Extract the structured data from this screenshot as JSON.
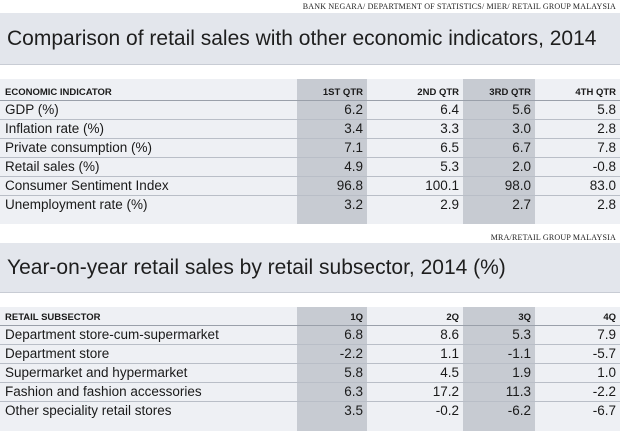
{
  "table1": {
    "source": "BANK NEGARA/ DEPARTMENT OF STATISTICS/ MIER/ RETAIL GROUP MALAYSIA",
    "title": "Comparison of retail sales with other economic indicators, 2014",
    "headers": [
      "ECONOMIC INDICATOR",
      "1ST QTR",
      "2ND QTR",
      "3RD QTR",
      "4TH QTR"
    ],
    "rows": [
      [
        "GDP (%)",
        "6.2",
        "6.4",
        "5.6",
        "5.8"
      ],
      [
        "Inflation rate (%)",
        "3.4",
        "3.3",
        "3.0",
        "2.8"
      ],
      [
        "Private consumption (%)",
        "7.1",
        "6.5",
        "6.7",
        "7.8"
      ],
      [
        "Retail sales (%)",
        "4.9",
        "5.3",
        "2.0",
        "-0.8"
      ],
      [
        "Consumer Sentiment Index",
        "96.8",
        "100.1",
        "98.0",
        "83.0"
      ],
      [
        "Unemployment rate (%)",
        "3.2",
        "2.9",
        "2.7",
        "2.8"
      ]
    ]
  },
  "table2": {
    "source": "MRA/RETAIL GROUP MALAYSIA",
    "title": "Year-on-year retail sales by retail subsector, 2014 (%)",
    "headers": [
      "RETAIL SUBSECTOR",
      "1Q",
      "2Q",
      "3Q",
      "4Q"
    ],
    "rows": [
      [
        "Department store-cum-supermarket",
        "6.8",
        "8.6",
        "5.3",
        "7.9"
      ],
      [
        "Department store",
        "-2.2",
        "1.1",
        "-1.1",
        "-5.7"
      ],
      [
        "Supermarket and hypermarket",
        "5.8",
        "4.5",
        "1.9",
        "1.0"
      ],
      [
        "Fashion and fashion accessories",
        "6.3",
        "17.2",
        "11.3",
        "-2.2"
      ],
      [
        "Other speciality retail stores",
        "3.5",
        "-0.2",
        "-6.2",
        "-6.7"
      ]
    ]
  },
  "colors": {
    "title_band": "#e3e6ec",
    "table_bg": "#eef0f4",
    "shaded_column": "#c7cbd2",
    "row_rule": "#b9bec7"
  }
}
